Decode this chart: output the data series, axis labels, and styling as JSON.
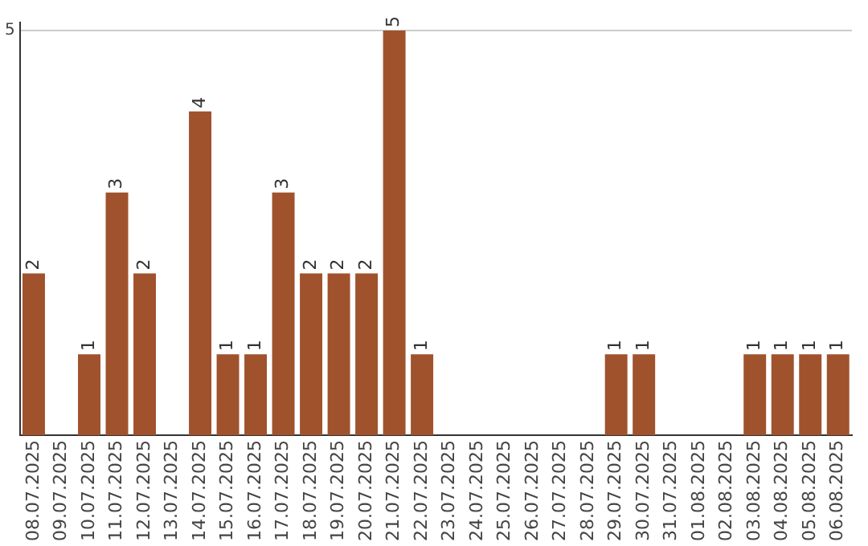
{
  "chart_data": {
    "type": "bar",
    "categories": [
      "08.07.2025",
      "09.07.2025",
      "10.07.2025",
      "11.07.2025",
      "12.07.2025",
      "13.07.2025",
      "14.07.2025",
      "15.07.2025",
      "16.07.2025",
      "17.07.2025",
      "18.07.2025",
      "19.07.2025",
      "20.07.2025",
      "21.07.2025",
      "22.07.2025",
      "23.07.2025",
      "24.07.2025",
      "25.07.2025",
      "26.07.2025",
      "27.07.2025",
      "28.07.2025",
      "29.07.2025",
      "30.07.2025",
      "31.07.2025",
      "01.08.2025",
      "02.08.2025",
      "03.08.2025",
      "04.08.2025",
      "05.08.2025",
      "06.08.2025"
    ],
    "values": [
      2,
      0,
      1,
      3,
      2,
      0,
      4,
      1,
      1,
      3,
      2,
      2,
      2,
      5,
      1,
      0,
      0,
      0,
      0,
      0,
      0,
      1,
      1,
      0,
      0,
      0,
      1,
      1,
      1,
      1
    ],
    "value_labels": [
      "2",
      null,
      "1",
      "3",
      "2",
      null,
      "4",
      "1",
      "1",
      "3",
      "2",
      "2",
      "2",
      "5",
      "1",
      null,
      null,
      null,
      null,
      null,
      null,
      "1",
      "1",
      null,
      null,
      null,
      "1",
      "1",
      "1",
      "1"
    ],
    "color": "#a0522d",
    "ylim": [
      0,
      5.1
    ],
    "yticks": [
      5
    ],
    "grid": "y",
    "legend": false
  }
}
